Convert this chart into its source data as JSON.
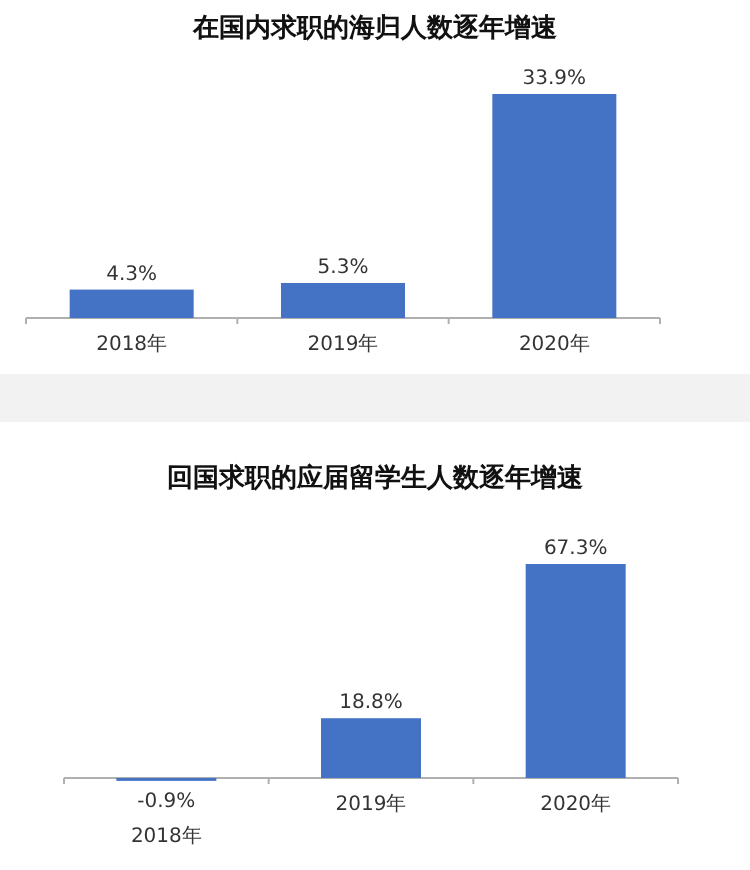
{
  "chart_data": [
    {
      "type": "bar",
      "title": "在国内求职的海归人数逐年增速",
      "categories": [
        "2018年",
        "2019年",
        "2020年"
      ],
      "values": [
        4.3,
        5.3,
        33.9
      ],
      "color": "#4472c4",
      "value_labels": [
        "4.3%",
        "5.3%",
        "33.9%"
      ]
    },
    {
      "type": "bar",
      "title": "回国求职的应届留学生人数逐年增速",
      "categories": [
        "2018年",
        "2019年",
        "2020年"
      ],
      "values": [
        -0.9,
        18.8,
        67.3
      ],
      "color": "#4472c4",
      "value_labels": [
        "-0.9%",
        "18.8%",
        "67.3%"
      ]
    }
  ]
}
